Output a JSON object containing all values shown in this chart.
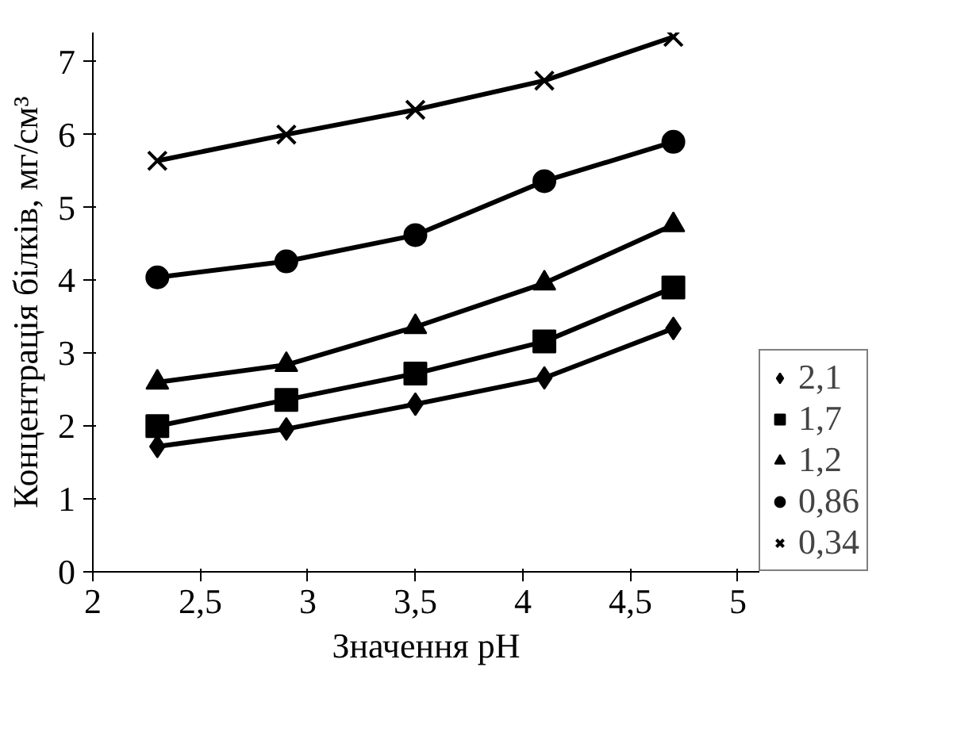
{
  "chart_data": {
    "type": "line",
    "xlabel": "Значення pH",
    "ylabel": "Концентрація білків, мг/см³",
    "x": [
      2.3,
      2.9,
      3.5,
      4.1,
      4.7
    ],
    "xlim": [
      2,
      5.1
    ],
    "xticks": [
      2,
      {
        "value": 2.5,
        "label": "2,5"
      },
      3,
      {
        "value": 3.5,
        "label": "3,5"
      },
      4,
      {
        "value": 4.5,
        "label": "4,5"
      },
      5
    ],
    "ylim": [
      0,
      7.4
    ],
    "yticks": [
      0,
      1,
      2,
      3,
      4,
      5,
      6,
      7
    ],
    "grid": false,
    "legend": "right",
    "line_style": "solid",
    "series": [
      {
        "name": "2,1",
        "color": "#000000",
        "marker": "diamond",
        "values": [
          1.72,
          1.96,
          2.3,
          2.66,
          3.34
        ]
      },
      {
        "name": "1,7",
        "color": "#000000",
        "marker": "square",
        "values": [
          2.0,
          2.36,
          2.72,
          3.16,
          3.9
        ]
      },
      {
        "name": "1,2",
        "color": "#000000",
        "marker": "triangle",
        "values": [
          2.6,
          2.84,
          3.36,
          3.96,
          4.76
        ]
      },
      {
        "name": "0,86",
        "color": "#000000",
        "marker": "circle",
        "values": [
          4.04,
          4.26,
          4.62,
          5.36,
          5.9
        ]
      },
      {
        "name": "0,34",
        "color": "#000000",
        "marker": "x",
        "values": [
          5.64,
          6.0,
          6.34,
          6.74,
          7.34
        ]
      }
    ]
  }
}
